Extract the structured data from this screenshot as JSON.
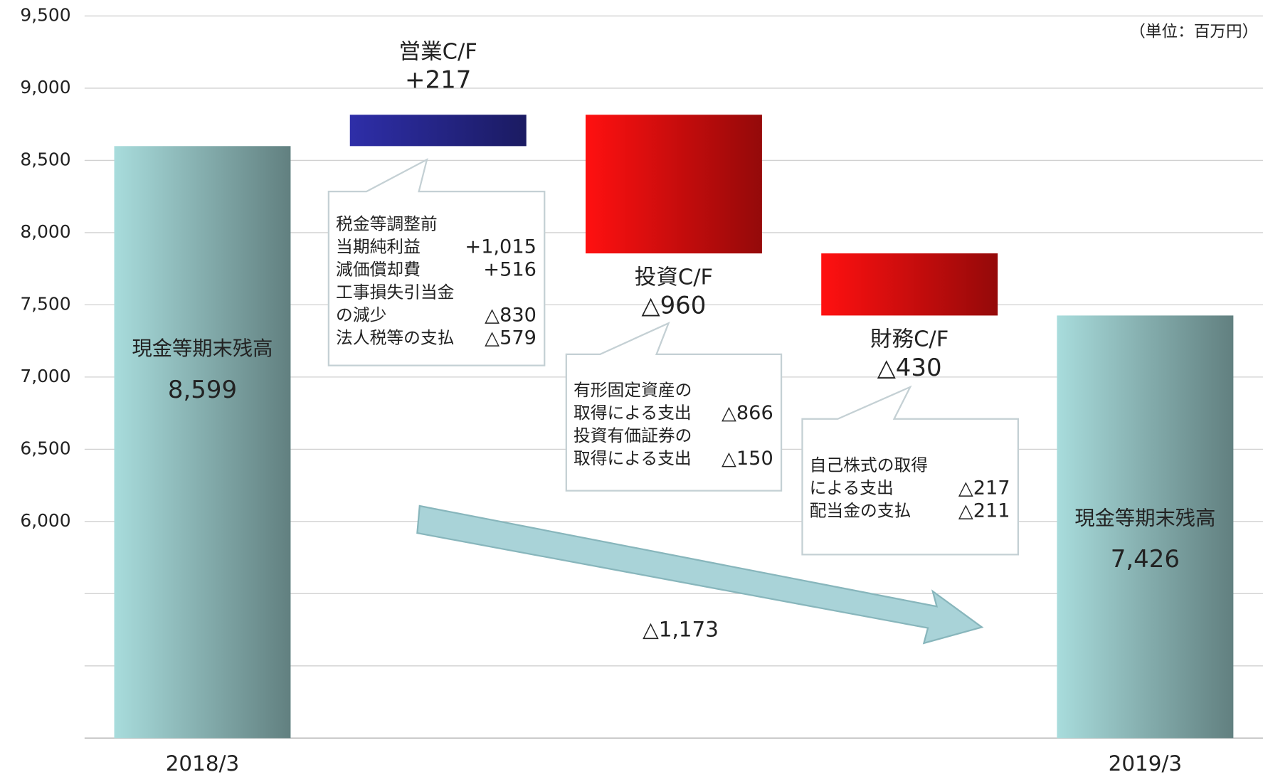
{
  "chart_data": {
    "type": "waterfall",
    "unit_note": "（単位：百万円）",
    "categories": [
      "2018/3",
      null,
      null,
      null,
      "2019/3"
    ],
    "bar_labels": [
      "現金等期末残高",
      "営業C/F",
      "投資C/F",
      "財務C/F",
      "現金等期末残高"
    ],
    "kinds": [
      "total",
      "change",
      "change",
      "change",
      "total"
    ],
    "values": [
      8599,
      217,
      -960,
      -430,
      7426
    ],
    "value_labels": [
      "8,599",
      "+217",
      "△960",
      "△430",
      "7,426"
    ],
    "colors": {
      "total": "#a8dcdc",
      "increase": "#2e2ea8",
      "decrease": "#ff1010"
    },
    "label_colors": {
      "total": "#111111",
      "increase": "#2a2a7a",
      "decrease": "#ee1111"
    },
    "ylim": [
      4500,
      9500
    ],
    "yticks": [
      {
        "value": 5000,
        "label": null
      },
      {
        "value": 5500,
        "label": null
      },
      {
        "value": 6000,
        "label": "6,000"
      },
      {
        "value": 6500,
        "label": "6,500"
      },
      {
        "value": 7000,
        "label": "7,000"
      },
      {
        "value": 7500,
        "label": "7,500"
      },
      {
        "value": 8000,
        "label": "8,000"
      },
      {
        "value": 8500,
        "label": "8,500"
      },
      {
        "value": 9000,
        "label": "9,000"
      },
      {
        "value": 9500,
        "label": "9,500"
      }
    ],
    "grid": true,
    "callouts": [
      {
        "bar": 1,
        "rows": [
          [
            "税金等調整前",
            null
          ],
          [
            "当期純利益",
            "+1,015"
          ],
          [
            "減価償却費",
            "+516"
          ],
          [
            "工事損失引当金",
            null
          ],
          [
            "の減少",
            "△830"
          ],
          [
            "法人税等の支払",
            "△579"
          ]
        ]
      },
      {
        "bar": 2,
        "rows": [
          [
            "有形固定資産の",
            null
          ],
          [
            "取得による支出",
            "△866"
          ],
          [
            "投資有価証券の",
            null
          ],
          [
            "取得による支出",
            "△150"
          ]
        ]
      },
      {
        "bar": 3,
        "rows": [
          [
            "自己株式の取得",
            null
          ],
          [
            "による支出",
            "△217"
          ],
          [
            "配当金の支払",
            "△211"
          ]
        ]
      }
    ],
    "arrow_label": "△1,173"
  }
}
